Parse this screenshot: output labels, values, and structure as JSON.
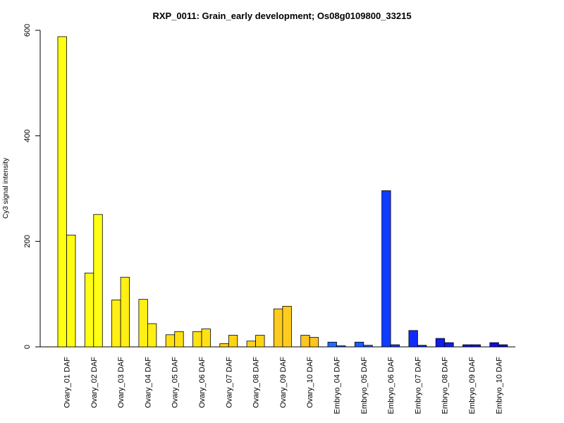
{
  "chart_data": {
    "type": "bar",
    "title": "RXP_0011: Grain_early development; Os08g0109800_33215",
    "xlabel": "",
    "ylabel": "Cy3 signal intensity",
    "ylim": [
      0,
      600
    ],
    "yticks": [
      0,
      200,
      400,
      600
    ],
    "grid": false,
    "categories": [
      "Ovary_01 DAF",
      "Ovary_02 DAF",
      "Ovary_03 DAF",
      "Ovary_04 DAF",
      "Ovary_05 DAF",
      "Ovary_06 DAF",
      "Ovary_07 DAF",
      "Ovary_08 DAF",
      "Ovary_09 DAF",
      "Ovary_10 DAF",
      "Embryo_04 DAF",
      "Embryo_05 DAF",
      "Embryo_06 DAF",
      "Embryo_07 DAF",
      "Embryo_08 DAF",
      "Embryo_09 DAF",
      "Embryo_10 DAF"
    ],
    "series": [
      {
        "values": [
          588,
          140,
          89,
          90,
          23,
          29,
          6,
          11,
          72,
          22,
          9,
          9,
          296,
          31,
          16,
          4,
          8
        ]
      },
      {
        "values": [
          212,
          251,
          132,
          44,
          29,
          34,
          22,
          22,
          77,
          18,
          2,
          3,
          4,
          3,
          8,
          4,
          4
        ]
      }
    ],
    "colors": [
      "#ffff14",
      "#ffff14",
      "#ffef14",
      "#ffef14",
      "#ffe114",
      "#ffe114",
      "#ffd414",
      "#ffd414",
      "#ffcb1e",
      "#ffc41e",
      "#1f6cff",
      "#1b5cff",
      "#0f3cff",
      "#0f2cff",
      "#0f1cf0",
      "#0f14e8",
      "#0f0ce0"
    ]
  }
}
